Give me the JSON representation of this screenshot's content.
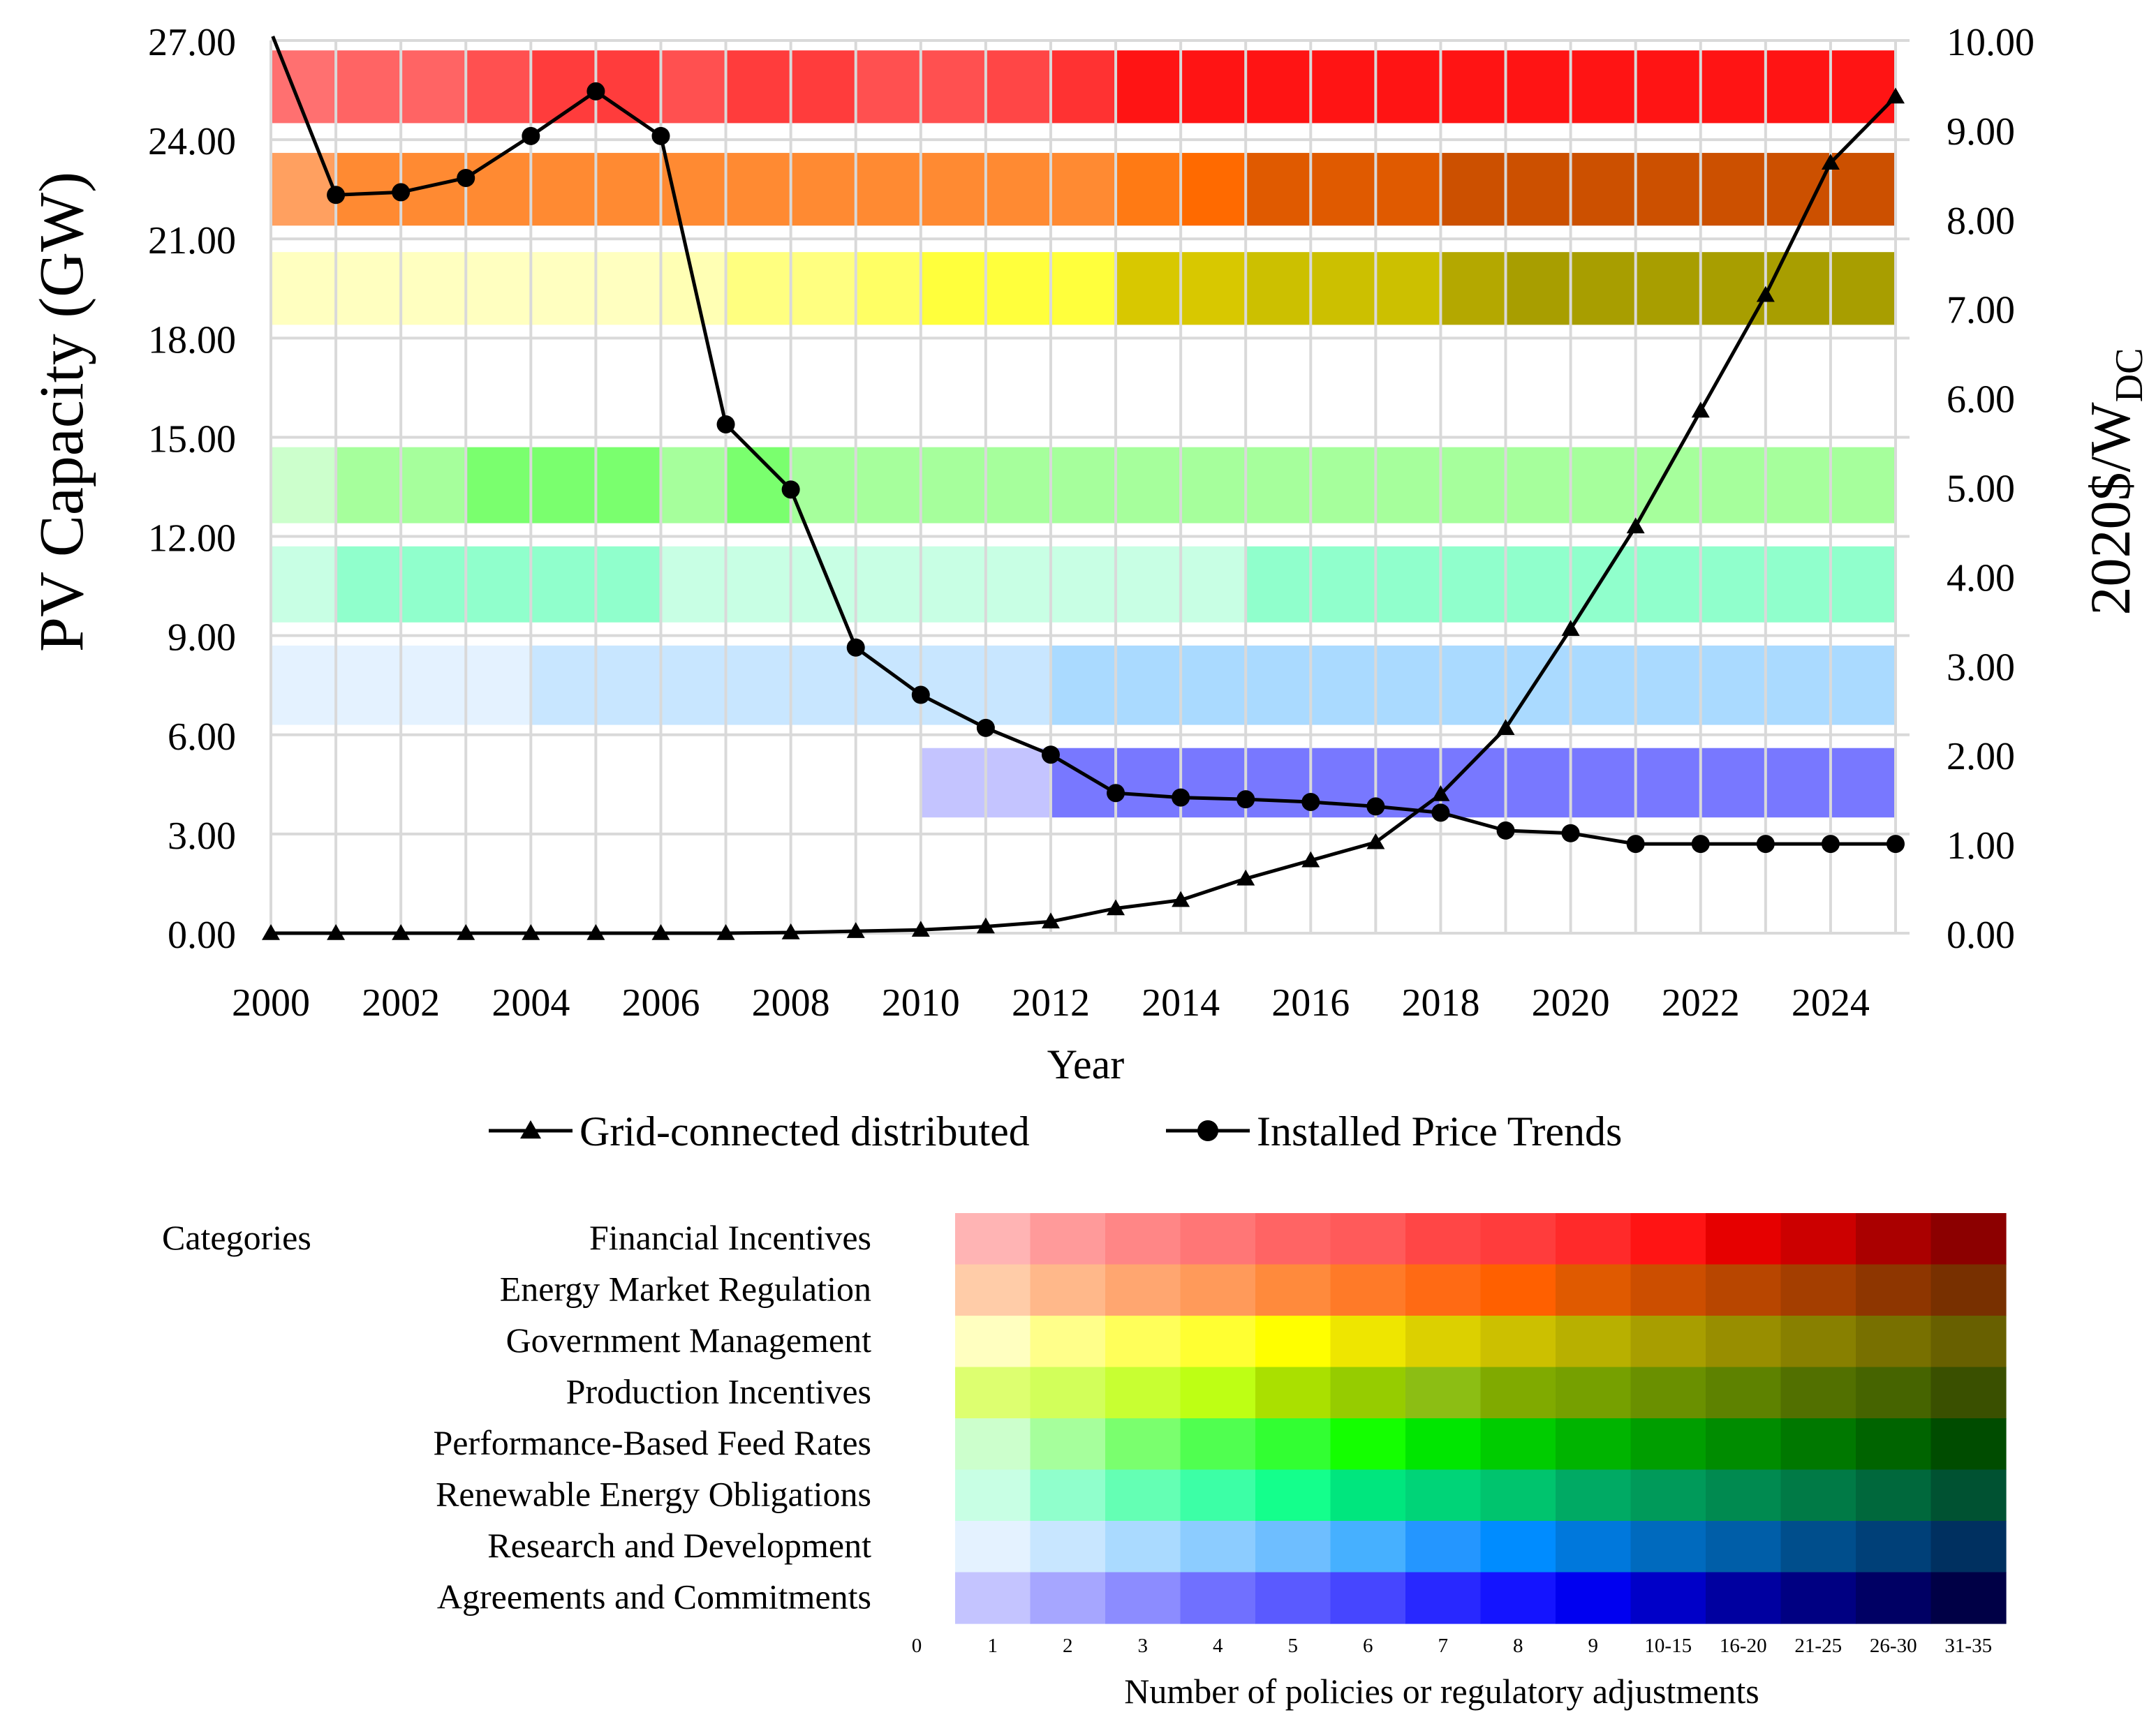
{
  "chart_data": {
    "type": "line",
    "xlabel": "Year",
    "ylabel_left": "PV Capacity (GW)",
    "ylabel_right_main": "2020$/W",
    "ylabel_right_sub": "DC",
    "xlim": [
      2000,
      2025
    ],
    "ylim_left": [
      0,
      27
    ],
    "ylim_right": [
      0,
      10
    ],
    "x_ticks": [
      "2000",
      "2002",
      "2004",
      "2006",
      "2008",
      "2010",
      "2012",
      "2014",
      "2016",
      "2018",
      "2020",
      "2022",
      "2024"
    ],
    "y_ticks_left": [
      "0.00",
      "3.00",
      "6.00",
      "9.00",
      "12.00",
      "15.00",
      "18.00",
      "21.00",
      "24.00",
      "27.00"
    ],
    "y_ticks_right": [
      "0.00",
      "1.00",
      "2.00",
      "3.00",
      "4.00",
      "5.00",
      "6.00",
      "7.00",
      "8.00",
      "9.00",
      "10.00"
    ],
    "grid": true,
    "legend_position": "bottom",
    "series": [
      {
        "name": "Grid-connected distributed",
        "axis": "left",
        "marker": "triangle",
        "x": [
          2000,
          2001,
          2002,
          2003,
          2004,
          2005,
          2006,
          2007,
          2008,
          2009,
          2010,
          2011,
          2012,
          2013,
          2014,
          2015,
          2016,
          2017,
          2018,
          2019,
          2020,
          2021,
          2022,
          2023,
          2024,
          2025
        ],
        "values": [
          0,
          0,
          0,
          0,
          0,
          0,
          0,
          0,
          0.02,
          0.06,
          0.1,
          0.2,
          0.35,
          0.75,
          1.0,
          1.65,
          2.2,
          2.75,
          4.2,
          6.2,
          9.2,
          12.3,
          15.8,
          19.3,
          23.3,
          25.3
        ]
      },
      {
        "name": "Installed Price Trends",
        "axis": "right",
        "marker": "circle",
        "x": [
          2000,
          2001,
          2002,
          2003,
          2004,
          2005,
          2006,
          2007,
          2008,
          2009,
          2010,
          2011,
          2012,
          2013,
          2014,
          2015,
          2016,
          2017,
          2018,
          2019,
          2020,
          2021,
          2022,
          2023,
          2024,
          2025
        ],
        "values": [
          10.1,
          8.27,
          8.3,
          8.46,
          8.93,
          9.43,
          8.93,
          5.7,
          4.97,
          3.2,
          2.67,
          2.3,
          2.0,
          1.57,
          1.52,
          1.5,
          1.47,
          1.42,
          1.35,
          1.15,
          1.12,
          1.0,
          1.0,
          1.0,
          1.0,
          1.0
        ]
      }
    ],
    "policy_bands": [
      {
        "category": "Financial Incentives",
        "cells": [
          "#FF7070",
          "#FF6464",
          "#FF6464",
          "#FF5050",
          "#FF3C3C",
          "#FF3C3C",
          "#FF5050",
          "#FF3C3C",
          "#FF3C3C",
          "#FF5050",
          "#FF5050",
          "#FF4646",
          "#FF3232",
          "#FF1414",
          "#FF1414",
          "#FF1414",
          "#FF1414",
          "#FF1414",
          "#FF1414",
          "#FF1414",
          "#FF1414",
          "#FF1414",
          "#FF1414",
          "#FF1414",
          "#FF1414"
        ]
      },
      {
        "category": "Energy Market Regulation",
        "cells": [
          "#FFA060",
          "#FF8A32",
          "#FF8A32",
          "#FF8A32",
          "#FF8A32",
          "#FF8A32",
          "#FF8A32",
          "#FF8A32",
          "#FF8A32",
          "#FF8A32",
          "#FF8A32",
          "#FF8A32",
          "#FF8A32",
          "#FF7A14",
          "#FF6A00",
          "#E05A00",
          "#E05A00",
          "#E05A00",
          "#CC5000",
          "#CC5000",
          "#CC5000",
          "#CC5000",
          "#CC5000",
          "#CC5000",
          "#CC5000"
        ]
      },
      {
        "category": "Government Management",
        "cells": [
          "#FFFFC0",
          "#FFFFC0",
          "#FFFFC0",
          "#FFFFC0",
          "#FFFFC0",
          "#FFFFC0",
          "#FFFFB4",
          "#FFFF80",
          "#FFFF80",
          "#FFFF64",
          "#FFFF3C",
          "#FFFF3C",
          "#FFFF3C",
          "#D8C800",
          "#D8C800",
          "#CCC000",
          "#CCC000",
          "#CCC000",
          "#B4A800",
          "#A89E00",
          "#A89E00",
          "#A89E00",
          "#A89E00",
          "#A89E00",
          "#A89E00"
        ]
      },
      {
        "category": "Performance-Based Feed Rates",
        "cells": [
          "#CCFFCC",
          "#A6FF9C",
          "#A6FF9C",
          "#7AFF6E",
          "#7AFF6E",
          "#7AFF6E",
          "#A6FF9C",
          "#7AFF6E",
          "#A6FF9C",
          "#A6FF9C",
          "#A6FF9C",
          "#A6FF9C",
          "#A6FF9C",
          "#A6FF9C",
          "#A6FF9C",
          "#A6FF9C",
          "#A6FF9C",
          "#A6FF9C",
          "#A6FF9C",
          "#A6FF9C",
          "#A6FF9C",
          "#A6FF9C",
          "#A6FF9C",
          "#A6FF9C",
          "#A6FF9C"
        ]
      },
      {
        "category": "Renewable Energy Obligations",
        "cells": [
          "#C8FFE4",
          "#90FFCC",
          "#90FFCC",
          "#90FFCC",
          "#90FFCC",
          "#90FFCC",
          "#C8FFE4",
          "#C8FFE4",
          "#C8FFE4",
          "#C8FFE4",
          "#C8FFE4",
          "#C8FFE4",
          "#C8FFE4",
          "#C8FFE4",
          "#C8FFE4",
          "#90FFCC",
          "#90FFCC",
          "#90FFCC",
          "#90FFCC",
          "#90FFCC",
          "#90FFCC",
          "#90FFCC",
          "#90FFCC",
          "#90FFCC",
          "#90FFCC"
        ]
      },
      {
        "category": "Research and Development",
        "cells": [
          "#E4F2FF",
          "#E4F2FF",
          "#E4F2FF",
          "#E4F2FF",
          "#C8E6FF",
          "#C8E6FF",
          "#C8E6FF",
          "#C8E6FF",
          "#C8E6FF",
          "#C8E6FF",
          "#C8E6FF",
          "#C8E6FF",
          "#AADAFF",
          "#AADAFF",
          "#AADAFF",
          "#AADAFF",
          "#AADAFF",
          "#AADAFF",
          "#AADAFF",
          "#AADAFF",
          "#AADAFF",
          "#AADAFF",
          "#AADAFF",
          "#AADAFF",
          "#AADAFF"
        ]
      },
      {
        "category": "Agreements and Commitments",
        "cells": [
          null,
          null,
          null,
          null,
          null,
          null,
          null,
          null,
          null,
          null,
          "#C4C4FF",
          "#C4C4FF",
          "#7878FF",
          "#7878FF",
          "#7878FF",
          "#7878FF",
          "#7878FF",
          "#7878FF",
          "#7878FF",
          "#7878FF",
          "#7878FF",
          "#7878FF",
          "#7878FF",
          "#7878FF",
          "#7878FF"
        ]
      }
    ],
    "matrix": {
      "title": "Categories",
      "xlabel": "Number of policies or regulatory adjustments",
      "scale_labels": [
        "0",
        "1",
        "2",
        "3",
        "4",
        "5",
        "6",
        "7",
        "8",
        "9",
        "10-15",
        "16-20",
        "21-25",
        "26-30",
        "31-35"
      ],
      "rows": [
        {
          "label": "Financial Incentives",
          "colors": [
            "#FFB4B4",
            "#FF9A9A",
            "#FF8686",
            "#FF7676",
            "#FF6464",
            "#FF5A5A",
            "#FF4646",
            "#FF3C3C",
            "#FF2A2A",
            "#FF1414",
            "#E60000",
            "#CC0000",
            "#AA0000",
            "#8C0000"
          ]
        },
        {
          "label": "Energy Market Regulation",
          "colors": [
            "#FFCCA8",
            "#FFB88A",
            "#FFA670",
            "#FF9A5A",
            "#FF8A3C",
            "#FF7A28",
            "#FF6A14",
            "#FF6000",
            "#E05A00",
            "#CC4E00",
            "#B84600",
            "#A43E00",
            "#8E3600",
            "#783000"
          ]
        },
        {
          "label": "Government Management",
          "colors": [
            "#FFFFC0",
            "#FFFF8A",
            "#FFFF5A",
            "#FFFF32",
            "#FFFF00",
            "#EEE600",
            "#DCD000",
            "#CCC000",
            "#B8B000",
            "#A89E00",
            "#988E00",
            "#888000",
            "#787000",
            "#686000"
          ]
        },
        {
          "label": "Production Incentives",
          "colors": [
            "#DDFF70",
            "#D2FF5A",
            "#C8FF32",
            "#BEFF14",
            "#AAE000",
            "#96CC00",
            "#8CBE14",
            "#80AA00",
            "#76A000",
            "#6A9000",
            "#5E8200",
            "#527000",
            "#466400",
            "#3A5000"
          ]
        },
        {
          "label": "Performance-Based Feed Rates",
          "colors": [
            "#CCFFCC",
            "#A6FF9C",
            "#7AFF6E",
            "#50FF50",
            "#32FF32",
            "#14FF00",
            "#00E600",
            "#00CC00",
            "#00B400",
            "#009E00",
            "#008C00",
            "#007800",
            "#006400",
            "#004C00"
          ]
        },
        {
          "label": "Renewable Energy Obligations",
          "colors": [
            "#C8FFE4",
            "#90FFCC",
            "#64FFB4",
            "#3CFFA6",
            "#14FF8C",
            "#00E67E",
            "#00D478",
            "#00C46E",
            "#00AA64",
            "#009A5A",
            "#008A50",
            "#007A46",
            "#00683C",
            "#005232"
          ]
        },
        {
          "label": "Research and Development",
          "colors": [
            "#E4F2FF",
            "#C8E6FF",
            "#AADAFF",
            "#8CCCFF",
            "#6EBEFF",
            "#46B0FF",
            "#2496FF",
            "#008CFF",
            "#0078DC",
            "#006ABE",
            "#005EA8",
            "#004E8C",
            "#004078",
            "#003060"
          ]
        },
        {
          "label": "Agreements and Commitments",
          "colors": [
            "#C4C4FF",
            "#A6A6FF",
            "#8C8CFF",
            "#7070FF",
            "#5A5AFF",
            "#4646FF",
            "#2828FF",
            "#1414FF",
            "#0000F0",
            "#0000C8",
            "#0000A0",
            "#000082",
            "#000064",
            "#000046"
          ]
        }
      ]
    }
  }
}
